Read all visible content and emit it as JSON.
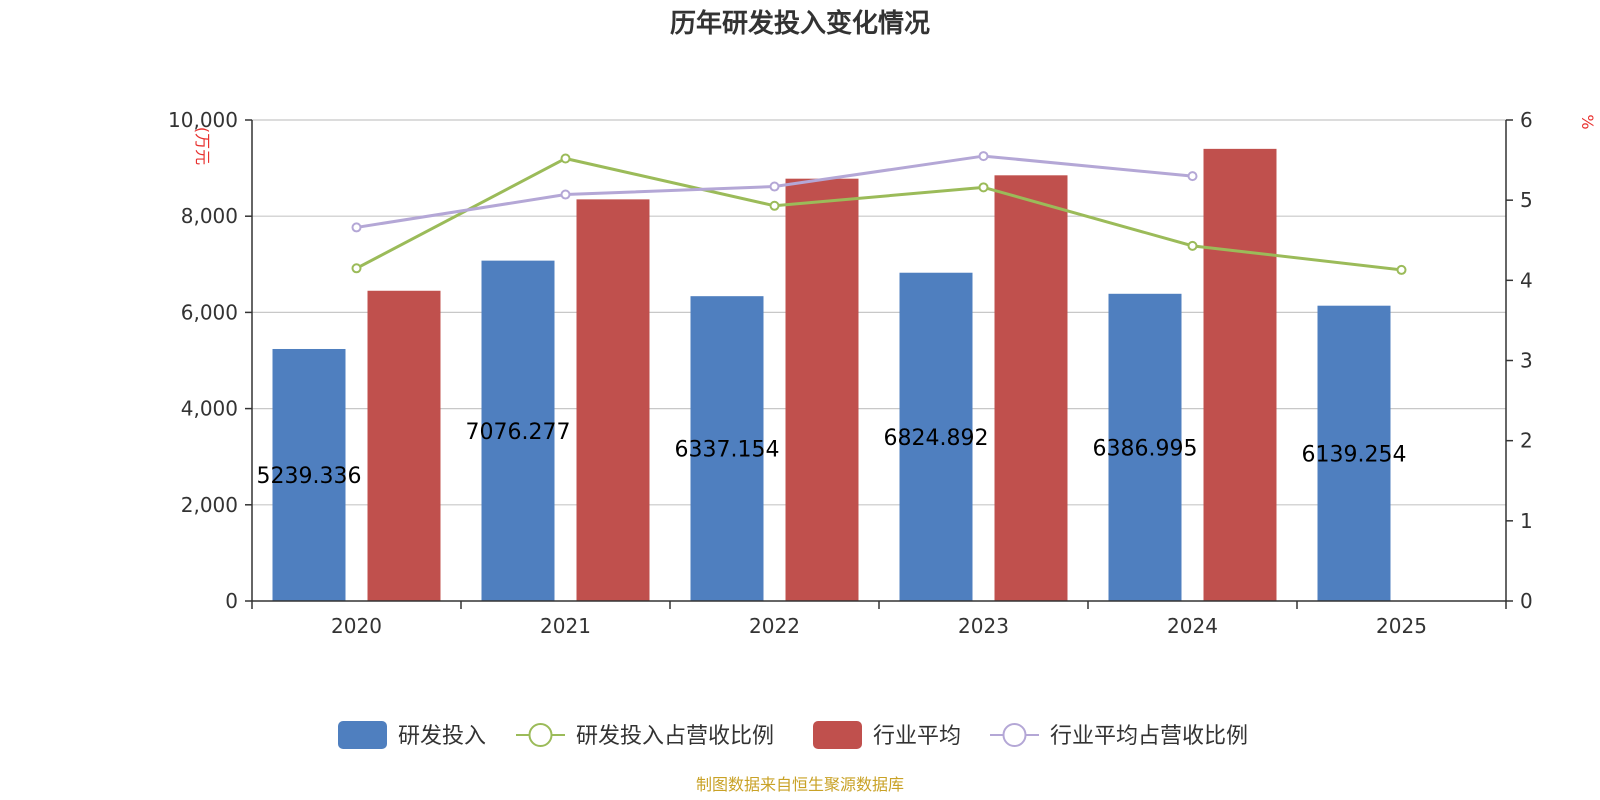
{
  "chart_data": {
    "type": "bar",
    "title": "历年研发投入变化情况",
    "categories": [
      "2020",
      "2021",
      "2022",
      "2023",
      "2024",
      "2025"
    ],
    "y_left": {
      "unit": "(万元",
      "ticks": [
        "0",
        "2,000",
        "4,000",
        "6,000",
        "8,000",
        "10,000"
      ],
      "ylim": [
        0,
        10000
      ]
    },
    "y_right": {
      "unit": "%",
      "ticks": [
        "0",
        "1",
        "2",
        "3",
        "4",
        "5",
        "6"
      ],
      "ylim": [
        0,
        6
      ]
    },
    "series": [
      {
        "name": "研发投入",
        "type": "bar",
        "axis": "left",
        "color": "#4f7fbf",
        "values": [
          5239.336,
          7076.277,
          6337.154,
          6824.892,
          6386.995,
          6139.254
        ],
        "labels": [
          "5239.336",
          "7076.277",
          "6337.154",
          "6824.892",
          "6386.995",
          "6139.254"
        ]
      },
      {
        "name": "研发投入占营收比例",
        "type": "line",
        "axis": "right",
        "color": "#9bbb59",
        "values": [
          4.15,
          5.52,
          4.93,
          5.16,
          4.43,
          4.13
        ]
      },
      {
        "name": "行业平均",
        "type": "bar",
        "axis": "left",
        "color": "#c0504d",
        "values": [
          6450,
          8350,
          8780,
          8850,
          9400,
          null
        ]
      },
      {
        "name": "行业平均占营收比例",
        "type": "line",
        "axis": "right",
        "color": "#b4a7d6",
        "values": [
          4.66,
          5.07,
          5.17,
          5.55,
          5.3,
          null
        ]
      }
    ],
    "grid": true,
    "legend": "bottom-center"
  },
  "source": "制图数据来自恒生聚源数据库"
}
